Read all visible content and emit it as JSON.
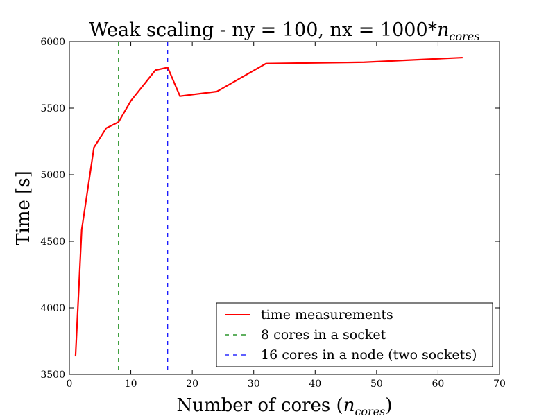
{
  "chart_data": {
    "type": "line",
    "title": {
      "prefix": "Weak scaling - ny = 100, nx = 1000*",
      "math_base": "n",
      "math_sub": "cores"
    },
    "xlabel": {
      "prefix": "Number of cores (",
      "math_base": "n",
      "math_sub": "cores",
      "suffix": ")"
    },
    "ylabel": "Time [s]",
    "xlim": [
      0,
      70
    ],
    "ylim": [
      3500,
      6000
    ],
    "xticks": [
      0,
      10,
      20,
      30,
      40,
      50,
      60,
      70
    ],
    "yticks": [
      3500,
      4000,
      4500,
      5000,
      5500,
      6000
    ],
    "grid": false,
    "legend_position": "bottom-right",
    "series": [
      {
        "name": "time measurements",
        "color": "#ff0000",
        "style": "solid",
        "x": [
          1,
          2,
          4,
          6,
          8,
          10,
          14,
          16,
          18,
          24,
          32,
          48,
          64
        ],
        "y": [
          3635,
          4585,
          5205,
          5350,
          5395,
          5555,
          5785,
          5805,
          5590,
          5625,
          5835,
          5845,
          5880
        ]
      },
      {
        "name": "8 cores in a socket",
        "color": "#008000",
        "style": "dashed",
        "vline_x": 8
      },
      {
        "name": "16 cores in a node (two sockets)",
        "color": "#0000ff",
        "style": "dashed",
        "vline_x": 16
      }
    ]
  }
}
